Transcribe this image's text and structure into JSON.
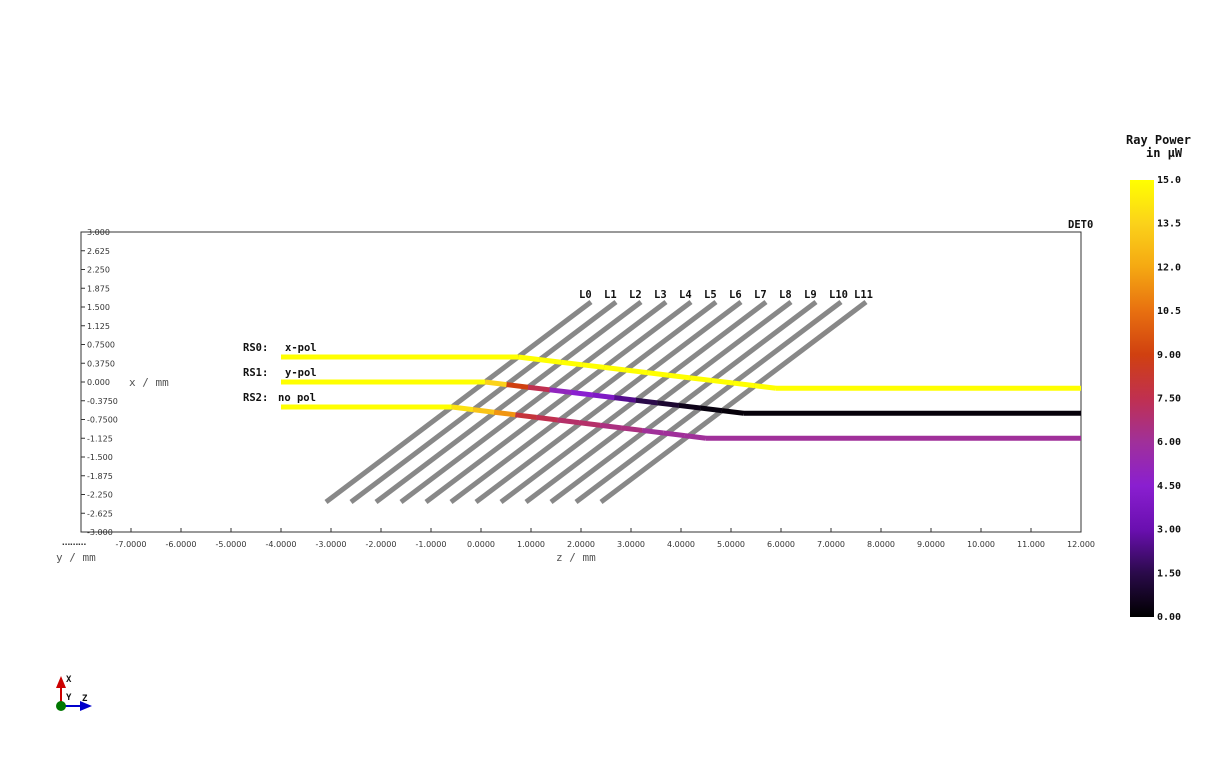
{
  "chart_data": {
    "type": "line",
    "xlabel": "z / mm",
    "ylabel": "x / mm",
    "thirdlabel": "y / mm",
    "xlim": [
      -8,
      12
    ],
    "ylim": [
      -3,
      3
    ],
    "x_ticks": [
      "-7.0000",
      "-6.0000",
      "-5.0000",
      "-4.0000",
      "-3.0000",
      "-2.0000",
      "-1.0000",
      "0.0000",
      "1.0000",
      "2.0000",
      "3.0000",
      "4.0000",
      "5.0000",
      "6.0000",
      "7.0000",
      "8.0000",
      "9.0000",
      "10.000",
      "11.000",
      "12.000"
    ],
    "y_ticks": [
      "3.000",
      "2.625",
      "2.250",
      "1.875",
      "1.500",
      "1.125",
      "0.7500",
      "0.3750",
      "0.000",
      "-0.3750",
      "-0.7500",
      "-1.125",
      "-1.500",
      "-1.875",
      "-2.250",
      "-2.625",
      "-3.000"
    ],
    "detector_label": "DET0",
    "layers": {
      "labels": [
        "L0",
        "L1",
        "L2",
        "L3",
        "L4",
        "L5",
        "L6",
        "L7",
        "L8",
        "L9",
        "L10",
        "L11"
      ],
      "count": 12,
      "pitch_z": 0.5,
      "top_z_start": 2.2,
      "bottom_z_start": -3.1,
      "x_top": 1.6,
      "x_bottom": -2.4,
      "color": "#888888"
    },
    "rays": [
      {
        "source": "RS0:",
        "name": "x-pol",
        "x": 0.5,
        "x_out": -0.125,
        "z_start": -4.0,
        "z_out": 5.9,
        "z_end": 12.0,
        "powers": [
          15,
          15,
          15,
          15,
          15,
          15,
          15,
          15,
          15,
          15,
          15,
          15,
          15,
          15
        ]
      },
      {
        "source": "RS1:",
        "name": "y-pol",
        "x": 0.0,
        "x_out": -0.625,
        "z_start": -4.0,
        "z_out": 5.25,
        "z_end": 12.0,
        "powers": [
          15,
          13.5,
          9,
          7.5,
          5,
          4.5,
          4,
          2.5,
          1.5,
          1,
          0.5,
          0.3,
          0.2,
          0.2
        ]
      },
      {
        "source": "RS2:",
        "name": "no pol",
        "x": -0.5,
        "x_out": -1.125,
        "z_start": -4.0,
        "z_out": 4.5,
        "z_end": 12.0,
        "powers": [
          15,
          14,
          13,
          11.5,
          8,
          7.5,
          7,
          7,
          6.5,
          6.5,
          6,
          6,
          6,
          6
        ]
      }
    ],
    "colorbar": {
      "title_line1": "Ray Power",
      "title_line2": "in µW",
      "min": 0,
      "max": 15,
      "ticks": [
        "15.0",
        "13.5",
        "12.0",
        "10.5",
        "9.00",
        "7.50",
        "6.00",
        "4.50",
        "3.00",
        "1.50",
        "0.00"
      ],
      "colormap": [
        "#000000",
        "#2a0a4a",
        "#6a0fb0",
        "#8a1fd0",
        "#a0309a",
        "#c03050",
        "#d04010",
        "#e87010",
        "#f5a812",
        "#fbd21a",
        "#ffff00"
      ]
    },
    "triad": {
      "x": "X",
      "y": "Y",
      "z": "Z",
      "x_color": "#cc0000",
      "y_color": "#007700",
      "z_color": "#0000cc"
    }
  }
}
